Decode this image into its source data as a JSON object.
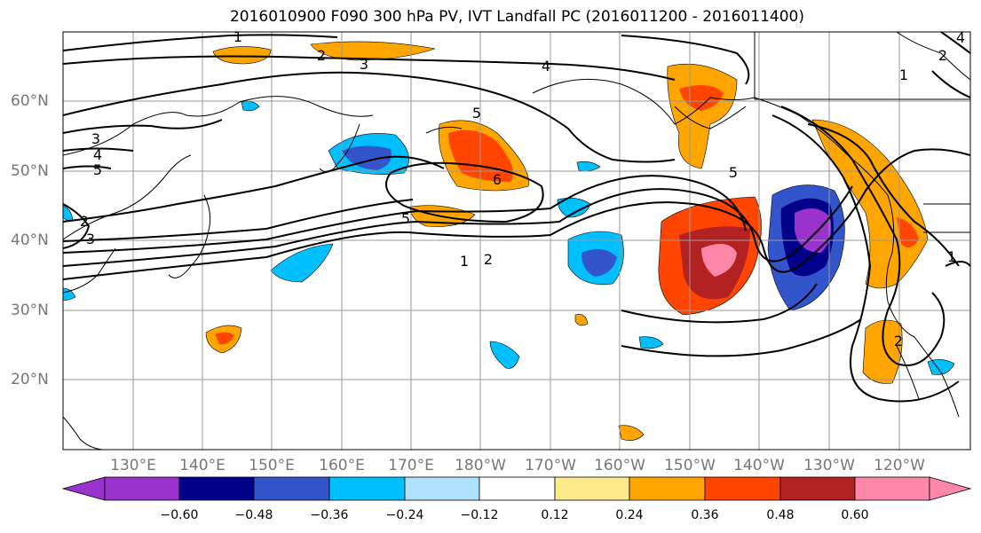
{
  "title": "2016010900 F090 300 hPa PV, IVT Landfall PC (2016011200 - 2016011400)",
  "map": {
    "lat_labels": [
      "60°N",
      "50°N",
      "40°N",
      "30°N",
      "20°N"
    ],
    "lon_labels": [
      "130°E",
      "140°E",
      "150°E",
      "160°E",
      "170°E",
      "180°W",
      "170°W",
      "160°W",
      "150°W",
      "140°W",
      "130°W",
      "120°W"
    ],
    "contour_labels": [
      "1",
      "2",
      "3",
      "4",
      "5",
      "6",
      "5",
      "5",
      "1",
      "2",
      "1",
      "2",
      "3",
      "4",
      "5",
      "2",
      "3",
      "4",
      "2",
      "1"
    ]
  },
  "colorbar": {
    "colors": [
      "#9933cc",
      "#00008b",
      "#3355cc",
      "#00bfff",
      "#b0e2ff",
      "#ffffff",
      "#fde98a",
      "#ffa500",
      "#ff4500",
      "#b22222",
      "#ff88aa"
    ],
    "tick_labels": [
      "−0.60",
      "−0.48",
      "−0.36",
      "−0.24",
      "−0.12",
      "0.12",
      "0.24",
      "0.36",
      "0.48",
      "0.60"
    ]
  }
}
